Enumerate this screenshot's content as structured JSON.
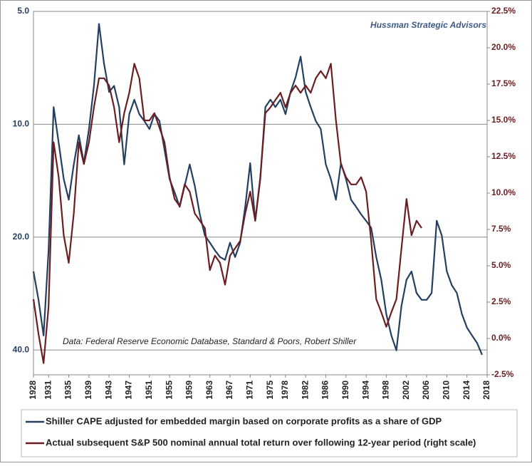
{
  "chart_data": {
    "type": "line",
    "annotations": [
      "Hussman Strategic Advisors",
      "Data: Federal Reserve Economic Database, Standard & Poors, Robert Shiller"
    ],
    "x": [
      1928,
      1929,
      1930,
      1931,
      1932,
      1933,
      1934,
      1935,
      1936,
      1937,
      1938,
      1939,
      1940,
      1941,
      1942,
      1943,
      1944,
      1945,
      1946,
      1947,
      1948,
      1949,
      1950,
      1951,
      1952,
      1953,
      1954,
      1955,
      1956,
      1957,
      1958,
      1959,
      1960,
      1961,
      1962,
      1963,
      1964,
      1965,
      1966,
      1967,
      1968,
      1969,
      1970,
      1971,
      1972,
      1973,
      1974,
      1975,
      1976,
      1977,
      1978,
      1979,
      1980,
      1981,
      1982,
      1983,
      1984,
      1985,
      1986,
      1987,
      1988,
      1989,
      1990,
      1991,
      1992,
      1993,
      1994,
      1995,
      1996,
      1997,
      1998,
      1999,
      2000,
      2001,
      2002,
      2003,
      2004,
      2005,
      2006,
      2007,
      2008,
      2009,
      2010,
      2011,
      2012,
      2013,
      2014,
      2015,
      2016,
      2017
    ],
    "series": [
      {
        "name": "Shiller CAPE adjusted for embedded margin based on corporate profits as a share of GDP",
        "color": "#243f60",
        "values": [
          24.7,
          29.4,
          36.6,
          21.7,
          9.0,
          11.2,
          14.0,
          15.9,
          12.8,
          10.7,
          12.7,
          10.3,
          7.9,
          5.4,
          6.9,
          8.2,
          7.9,
          9.0,
          12.8,
          9.4,
          8.6,
          9.4,
          9.8,
          10.3,
          9.4,
          9.8,
          11.7,
          14.0,
          15.2,
          16.6,
          14.6,
          12.8,
          14.6,
          17.4,
          19.8,
          20.7,
          21.7,
          22.6,
          23.0,
          20.7,
          22.6,
          20.7,
          16.6,
          12.7,
          18.1,
          14.0,
          9.0,
          8.6,
          9.0,
          8.6,
          9.4,
          8.2,
          7.5,
          6.6,
          8.2,
          9.0,
          9.8,
          10.3,
          12.8,
          14.0,
          15.9,
          12.7,
          14.0,
          15.9,
          16.6,
          17.4,
          18.1,
          18.9,
          22.6,
          26.0,
          32.1,
          36.6,
          40.1,
          30.5,
          26.0,
          24.7,
          28.2,
          29.4,
          29.4,
          28.2,
          18.1,
          19.8,
          24.7,
          26.9,
          28.2,
          32.1,
          34.9,
          36.6,
          38.3,
          41.2
        ]
      },
      {
        "name": "Actual subsequent S&P 500 nominal annual total return over following 12-year period (right scale)",
        "color": "#6b1e22",
        "axis": "y2",
        "values": [
          2.7,
          0.3,
          -1.7,
          2.2,
          13.5,
          11.1,
          7.1,
          5.2,
          8.6,
          13.5,
          12.0,
          13.5,
          15.9,
          17.9,
          17.9,
          17.4,
          15.9,
          13.5,
          15.5,
          16.9,
          18.9,
          17.9,
          15.0,
          15.0,
          15.5,
          14.5,
          13.5,
          11.1,
          9.6,
          9.1,
          10.6,
          10.1,
          8.6,
          8.1,
          7.6,
          4.7,
          5.7,
          5.2,
          3.7,
          5.7,
          6.2,
          6.7,
          8.6,
          10.1,
          8.1,
          11.1,
          15.5,
          15.9,
          16.4,
          16.9,
          15.9,
          16.9,
          17.4,
          16.9,
          17.4,
          16.9,
          17.9,
          18.4,
          17.9,
          18.9,
          15.0,
          12.0,
          11.1,
          10.6,
          10.6,
          11.1,
          10.1,
          6.7,
          2.7,
          1.8,
          0.8,
          1.8,
          2.7,
          6.2,
          9.6,
          7.1,
          8.1,
          7.6,
          null,
          null,
          null,
          null,
          null,
          null,
          null,
          null,
          null,
          null,
          null,
          null
        ]
      }
    ],
    "xlim": [
      1928,
      2018
    ],
    "xticks": [
      1928,
      1931,
      1935,
      1939,
      1943,
      1947,
      1951,
      1955,
      1959,
      1963,
      1967,
      1971,
      1975,
      1978,
      1982,
      1986,
      1990,
      1994,
      1998,
      2002,
      2006,
      2010,
      2014,
      2018
    ],
    "ylim": [
      5,
      46.6
    ],
    "y_log": true,
    "y_inverted": true,
    "yticks": [
      {
        "value": 5,
        "label": "5.0"
      },
      {
        "value": 10,
        "label": "10.0"
      },
      {
        "value": 20,
        "label": "20.0"
      },
      {
        "value": 40,
        "label": "40.0"
      }
    ],
    "y2lim": [
      -2.5,
      22.5
    ],
    "y2ticks": [
      {
        "value": -2.5,
        "label": "-2.5%"
      },
      {
        "value": 0,
        "label": "0.0%"
      },
      {
        "value": 2.5,
        "label": "2.5%"
      },
      {
        "value": 5,
        "label": "5.0%"
      },
      {
        "value": 7.5,
        "label": "7.5%"
      },
      {
        "value": 10,
        "label": "10.0%"
      },
      {
        "value": 12.5,
        "label": "12.5%"
      },
      {
        "value": 15,
        "label": "15.0%"
      },
      {
        "value": 17.5,
        "label": "17.5%"
      },
      {
        "value": 20,
        "label": "20.0%"
      },
      {
        "value": 22.5,
        "label": "22.5%"
      }
    ],
    "grid": true
  }
}
